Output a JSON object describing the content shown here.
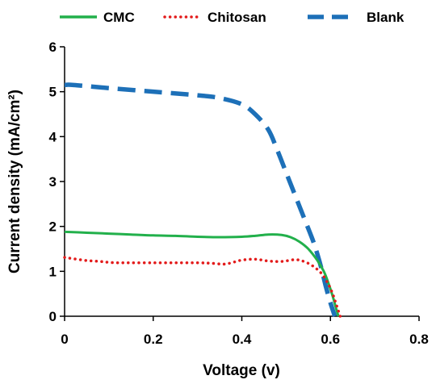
{
  "chart_data": {
    "type": "line",
    "title": "",
    "xlabel": "Voltage (v)",
    "ylabel": "Current density (mA/cm²)",
    "xlim": [
      0,
      0.8
    ],
    "ylim": [
      0,
      6
    ],
    "x_ticks": [
      "0",
      "0.2",
      "0.4",
      "0.6",
      "0.8"
    ],
    "y_ticks": [
      "0",
      "1",
      "2",
      "3",
      "4",
      "5",
      "6"
    ],
    "grid": false,
    "legend_position": "top",
    "series": [
      {
        "name": "CMC",
        "color": "#22b04b",
        "style": "solid",
        "x": [
          0,
          0.05,
          0.1,
          0.15,
          0.2,
          0.25,
          0.3,
          0.35,
          0.4,
          0.43,
          0.46,
          0.49,
          0.51,
          0.53,
          0.55,
          0.57,
          0.585,
          0.595,
          0.605,
          0.612,
          0.618
        ],
        "y": [
          1.88,
          1.86,
          1.84,
          1.82,
          1.8,
          1.79,
          1.77,
          1.76,
          1.77,
          1.79,
          1.82,
          1.81,
          1.76,
          1.66,
          1.5,
          1.25,
          1.0,
          0.75,
          0.45,
          0.2,
          0.0
        ]
      },
      {
        "name": "Chitosan",
        "color": "#e31b1b",
        "style": "dotted",
        "x": [
          0,
          0.02,
          0.05,
          0.08,
          0.1,
          0.12,
          0.15,
          0.2,
          0.25,
          0.3,
          0.33,
          0.36,
          0.38,
          0.4,
          0.43,
          0.46,
          0.49,
          0.52,
          0.54,
          0.56,
          0.58,
          0.595,
          0.605,
          0.612,
          0.618,
          0.622
        ],
        "y": [
          1.31,
          1.28,
          1.24,
          1.22,
          1.2,
          1.19,
          1.19,
          1.19,
          1.19,
          1.19,
          1.18,
          1.16,
          1.2,
          1.25,
          1.27,
          1.23,
          1.22,
          1.26,
          1.22,
          1.12,
          0.95,
          0.72,
          0.5,
          0.3,
          0.12,
          0.0
        ]
      },
      {
        "name": "Blank",
        "color": "#1d70b8",
        "style": "dashed",
        "x": [
          0,
          0.02,
          0.1,
          0.2,
          0.3,
          0.35,
          0.4,
          0.43,
          0.46,
          0.48,
          0.5,
          0.52,
          0.54,
          0.56,
          0.57,
          0.58,
          0.59,
          0.6,
          0.61
        ],
        "y": [
          5.15,
          5.15,
          5.08,
          5.0,
          4.92,
          4.86,
          4.72,
          4.5,
          4.15,
          3.7,
          3.2,
          2.7,
          2.2,
          1.7,
          1.4,
          1.05,
          0.65,
          0.3,
          0.0
        ]
      }
    ]
  }
}
